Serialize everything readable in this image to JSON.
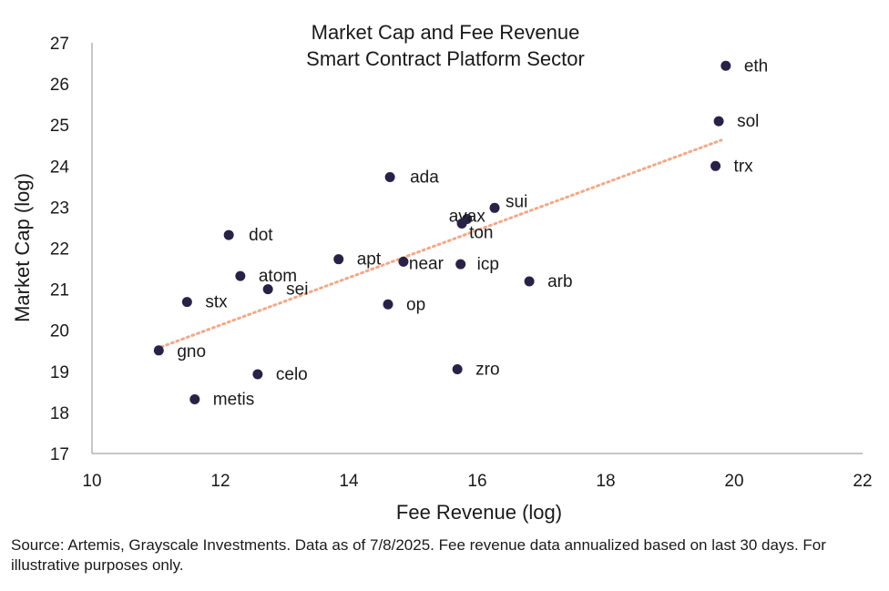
{
  "colors": {
    "point": "#2a2146",
    "trend": "#f2a98a",
    "axis": "#8c8c8c",
    "text": "#1a1a1a"
  },
  "source_note": "Source: Artemis, Grayscale Investments. Data as of 7/8/2025. Fee revenue data annualized based on last 30 days. For illustrative purposes only.",
  "chart_data": {
    "type": "scatter",
    "title": "Market Cap and Fee Revenue",
    "subtitle": "Smart Contract Platform Sector",
    "xlabel": "Fee Revenue (log)",
    "ylabel": "Market Cap (log)",
    "xlim": [
      10,
      22
    ],
    "ylim": [
      17,
      27
    ],
    "xticks": [
      "10",
      "12",
      "14",
      "16",
      "18",
      "20",
      "22"
    ],
    "yticks": [
      "17",
      "18",
      "19",
      "20",
      "21",
      "22",
      "23",
      "24",
      "25",
      "26",
      "27"
    ],
    "grid": false,
    "points": [
      {
        "label": "eth",
        "x": 19.87,
        "y": 26.44
      },
      {
        "label": "sol",
        "x": 19.76,
        "y": 25.09
      },
      {
        "label": "trx",
        "x": 19.71,
        "y": 24.0
      },
      {
        "label": "ada",
        "x": 14.64,
        "y": 23.73
      },
      {
        "label": "sui",
        "x": 16.27,
        "y": 22.98
      },
      {
        "label": "avax",
        "x": 15.84,
        "y": 22.71
      },
      {
        "label": "ton",
        "x": 15.76,
        "y": 22.6
      },
      {
        "label": "dot",
        "x": 12.13,
        "y": 22.32
      },
      {
        "label": "apt",
        "x": 13.84,
        "y": 21.73
      },
      {
        "label": "near",
        "x": 14.85,
        "y": 21.67
      },
      {
        "label": "icp",
        "x": 15.74,
        "y": 21.61
      },
      {
        "label": "atom",
        "x": 12.31,
        "y": 21.32
      },
      {
        "label": "arb",
        "x": 16.81,
        "y": 21.19
      },
      {
        "label": "sei",
        "x": 12.74,
        "y": 21.0
      },
      {
        "label": "stx",
        "x": 11.48,
        "y": 20.69
      },
      {
        "label": "op",
        "x": 14.61,
        "y": 20.63
      },
      {
        "label": "gno",
        "x": 11.04,
        "y": 19.51
      },
      {
        "label": "zro",
        "x": 15.69,
        "y": 19.05
      },
      {
        "label": "celo",
        "x": 12.58,
        "y": 18.93
      },
      {
        "label": "metis",
        "x": 11.6,
        "y": 18.32
      }
    ],
    "trendline": {
      "type": "linear",
      "style": "dotted",
      "x": [
        11.0,
        19.8
      ],
      "y": [
        19.55,
        24.63
      ]
    }
  }
}
